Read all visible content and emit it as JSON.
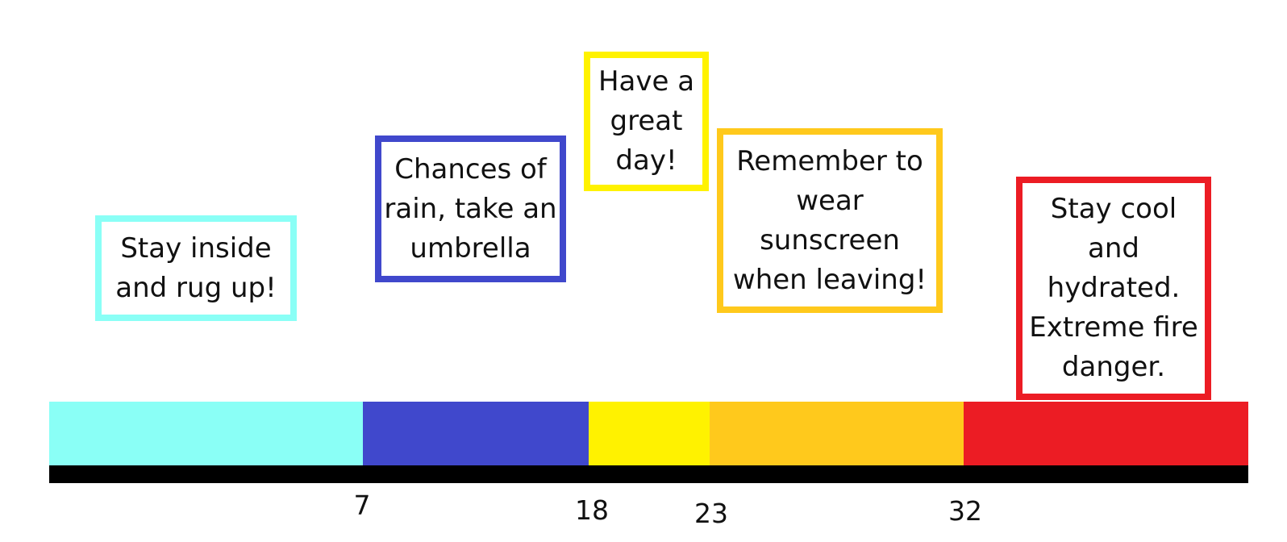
{
  "colors": {
    "cold": "#8afff6",
    "cool": "#4048cc",
    "mild": "#fff200",
    "warm": "#ffc91c",
    "hot": "#ec1c24",
    "baseline": "#000000"
  },
  "scale": {
    "thresholds": [
      "7",
      "18",
      "23",
      "32"
    ]
  },
  "notes": {
    "cold": "Stay inside and rug up!",
    "cool": "Chances of rain, take an umbrella",
    "mild": "Have a great day!",
    "warm": "Remember to wear sunscreen when leaving!",
    "hot": "Stay cool and hydrated. Extreme fire danger."
  }
}
